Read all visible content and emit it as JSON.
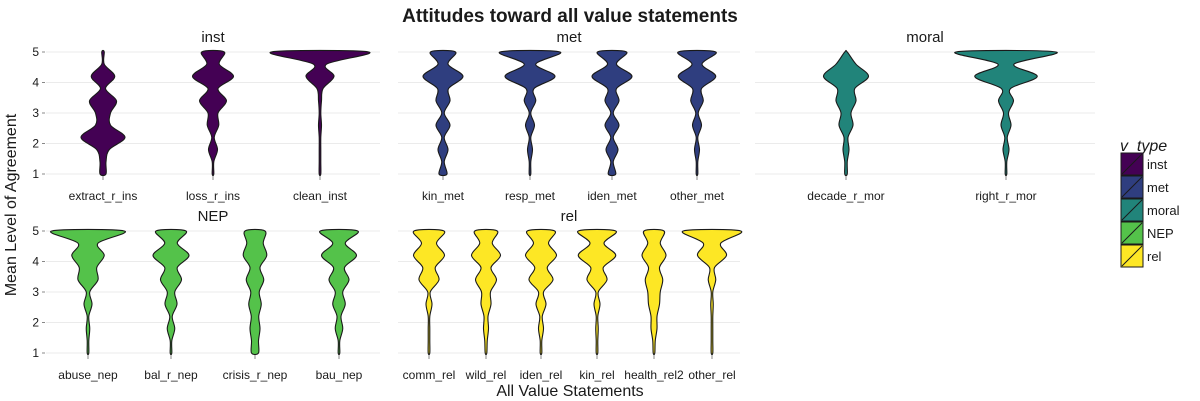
{
  "chart_data": {
    "type": "violin",
    "title": "Attitudes toward all value statements",
    "xlabel": "All Value Statements",
    "ylabel": "Mean Level of Agreement",
    "ylim": [
      1,
      5
    ],
    "yticks": [
      1,
      2,
      3,
      4,
      5
    ],
    "grid": true,
    "legend": {
      "title": "v_type",
      "position": "right",
      "entries": [
        {
          "name": "inst",
          "color": "#440154"
        },
        {
          "name": "met",
          "color": "#2f3e7f"
        },
        {
          "name": "moral",
          "color": "#21847a"
        },
        {
          "name": "NEP",
          "color": "#54c24a"
        },
        {
          "name": "rel",
          "color": "#fde725"
        }
      ]
    },
    "panels": [
      {
        "name": "inst",
        "color": "#440154",
        "violins": [
          {
            "label": "extract_r_ins",
            "y_min": 1,
            "y_max": 5,
            "widths": [
              0.12,
              0.12,
              0.25,
              0.88,
              0.3,
              0.3,
              0.54,
              0.1,
              0.47,
              0.05,
              0.05
            ]
          },
          {
            "label": "loss_r_ins",
            "y_min": 1,
            "y_max": 5,
            "widths": [
              0.02,
              0.02,
              0.18,
              0.05,
              0.23,
              0.2,
              0.54,
              0.2,
              0.82,
              0.25,
              0.45
            ]
          },
          {
            "label": "clean_inst",
            "y_min": 1,
            "y_max": 5,
            "widths": [
              0.02,
              0.02,
              0.02,
              0.02,
              0.06,
              0.02,
              0.06,
              0.12,
              0.56,
              0.26,
              1.95
            ]
          }
        ]
      },
      {
        "name": "met",
        "color": "#2f3e7f",
        "violins": [
          {
            "label": "kin_met",
            "y_min": 1,
            "y_max": 5,
            "widths": [
              0.16,
              0.05,
              0.2,
              0.05,
              0.28,
              0.05,
              0.28,
              0.22,
              0.8,
              0.2,
              0.5
            ]
          },
          {
            "label": "resp_met",
            "y_min": 1,
            "y_max": 5,
            "widths": [
              0.02,
              0.02,
              0.1,
              0.02,
              0.18,
              0.02,
              0.23,
              0.16,
              1.0,
              0.23,
              1.2
            ]
          },
          {
            "label": "iden_met",
            "y_min": 1,
            "y_max": 5,
            "widths": [
              0.15,
              0.05,
              0.24,
              0.05,
              0.28,
              0.05,
              0.28,
              0.18,
              0.8,
              0.18,
              0.58
            ]
          },
          {
            "label": "other_met",
            "y_min": 1,
            "y_max": 5,
            "widths": [
              0.02,
              0.02,
              0.1,
              0.02,
              0.18,
              0.05,
              0.25,
              0.18,
              0.75,
              0.2,
              0.75
            ]
          }
        ]
      },
      {
        "name": "moral",
        "color": "#21847a",
        "violins": [
          {
            "label": "decade_r_mor",
            "y_min": 1,
            "y_max": 5,
            "widths": [
              0.05,
              0.05,
              0.12,
              0.08,
              0.28,
              0.2,
              0.4,
              0.35,
              0.9,
              0.4,
              0.05
            ]
          },
          {
            "label": "right_r_mor",
            "y_min": 1,
            "y_max": 5,
            "widths": [
              0.02,
              0.02,
              0.12,
              0.05,
              0.2,
              0.1,
              0.3,
              0.18,
              1.25,
              0.32,
              2.0
            ]
          }
        ]
      },
      {
        "name": "NEP",
        "color": "#54c24a",
        "violins": [
          {
            "label": "abuse_nep",
            "y_min": 1,
            "y_max": 5,
            "widths": [
              0.01,
              0.02,
              0.07,
              0.02,
              0.16,
              0.07,
              0.4,
              0.35,
              0.65,
              0.4,
              1.45
            ]
          },
          {
            "label": "bal_r_nep",
            "y_min": 1,
            "y_max": 5,
            "widths": [
              0.02,
              0.03,
              0.15,
              0.05,
              0.24,
              0.15,
              0.42,
              0.25,
              0.72,
              0.25,
              0.6
            ]
          },
          {
            "label": "crisis_r_nep",
            "y_min": 1,
            "y_max": 5,
            "widths": [
              0.14,
              0.14,
              0.2,
              0.15,
              0.25,
              0.17,
              0.35,
              0.2,
              0.47,
              0.33,
              0.4
            ]
          },
          {
            "label": "bau_nep",
            "y_min": 1,
            "y_max": 5,
            "widths": [
              0.02,
              0.03,
              0.15,
              0.08,
              0.25,
              0.15,
              0.4,
              0.22,
              0.7,
              0.25,
              0.75
            ]
          }
        ]
      },
      {
        "name": "rel",
        "color": "#fde725",
        "violins": [
          {
            "label": "comm_rel",
            "y_min": 1,
            "y_max": 5,
            "widths": [
              0.01,
              0.01,
              0.03,
              0.02,
              0.12,
              0.05,
              0.4,
              0.25,
              0.62,
              0.3,
              0.6
            ]
          },
          {
            "label": "wild_rel",
            "y_min": 1,
            "y_max": 5,
            "widths": [
              0.02,
              0.05,
              0.1,
              0.08,
              0.2,
              0.18,
              0.42,
              0.2,
              0.58,
              0.25,
              0.45
            ]
          },
          {
            "label": "iden_rel",
            "y_min": 1,
            "y_max": 5,
            "widths": [
              0.02,
              0.02,
              0.1,
              0.05,
              0.2,
              0.1,
              0.48,
              0.25,
              0.62,
              0.3,
              0.55
            ]
          },
          {
            "label": "kin_rel",
            "y_min": 1,
            "y_max": 5,
            "widths": [
              0.01,
              0.01,
              0.05,
              0.02,
              0.12,
              0.05,
              0.4,
              0.25,
              0.75,
              0.28,
              0.75
            ]
          },
          {
            "label": "health_rel2",
            "y_min": 1,
            "y_max": 5,
            "widths": [
              0.02,
              0.05,
              0.12,
              0.12,
              0.22,
              0.25,
              0.35,
              0.22,
              0.48,
              0.25,
              0.4
            ]
          },
          {
            "label": "other_rel",
            "y_min": 1,
            "y_max": 5,
            "widths": [
              0.01,
              0.01,
              0.01,
              0.01,
              0.05,
              0.02,
              0.15,
              0.1,
              0.58,
              0.35,
              1.15
            ]
          }
        ]
      }
    ]
  }
}
